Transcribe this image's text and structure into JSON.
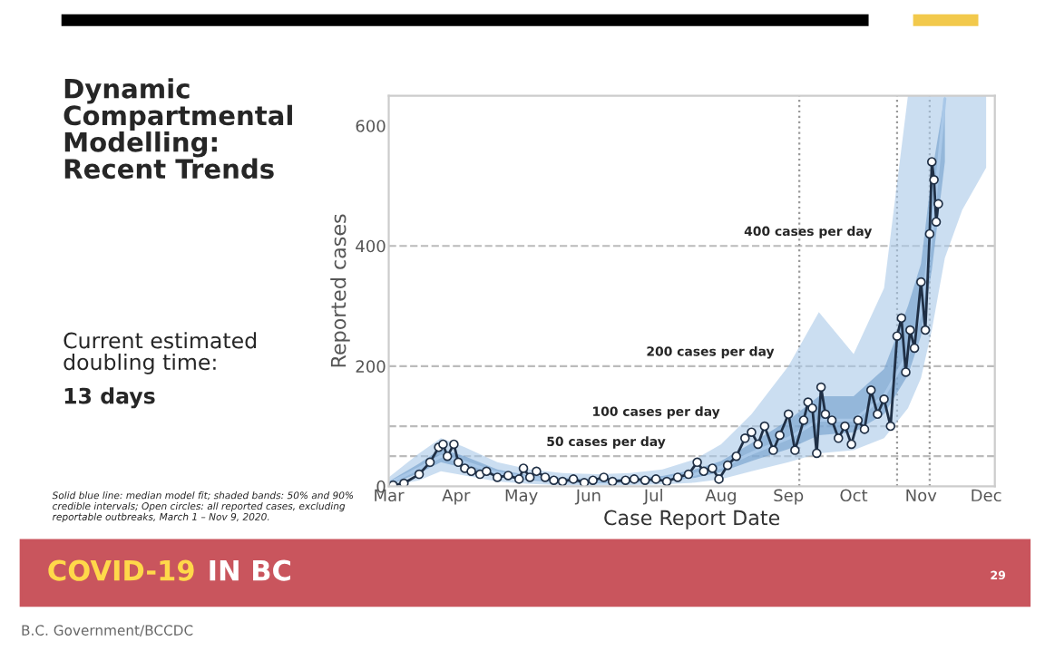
{
  "chart_data": {
    "type": "line",
    "title": "Dynamic\nCompartmental\nModelling:\nRecent Trends",
    "xlabel": "Case Report Date",
    "ylabel": "Reported cases",
    "xlim": [
      "2020-03-01",
      "2020-12-05"
    ],
    "xticks": [
      {
        "value": "2020-03-01",
        "label": "Mar"
      },
      {
        "value": "2020-04-01",
        "label": "Apr"
      },
      {
        "value": "2020-05-01",
        "label": "May"
      },
      {
        "value": "2020-06-01",
        "label": "Jun"
      },
      {
        "value": "2020-07-01",
        "label": "Jul"
      },
      {
        "value": "2020-08-01",
        "label": "Aug"
      },
      {
        "value": "2020-09-01",
        "label": "Sep"
      },
      {
        "value": "2020-10-01",
        "label": "Oct"
      },
      {
        "value": "2020-11-01",
        "label": "Nov"
      },
      {
        "value": "2020-12-01",
        "label": "Dec"
      }
    ],
    "ylim": [
      0,
      650
    ],
    "yticks": [
      0,
      200,
      400,
      600
    ],
    "grid": false,
    "legend": false,
    "series": [
      {
        "type": "line",
        "color": "#a9c8e8",
        "x": [
          "2020-03-01",
          "2020-03-15",
          "2020-03-25",
          "2020-04-05",
          "2020-04-20",
          "2020-05-05",
          "2020-05-20",
          "2020-06-05",
          "2020-06-20",
          "2020-07-05",
          "2020-07-20",
          "2020-08-01",
          "2020-08-15",
          "2020-09-01",
          "2020-09-15",
          "2020-10-01",
          "2020-10-15",
          "2020-10-26",
          "2020-11-01",
          "2020-11-06",
          "2020-11-12",
          "2020-11-20",
          "2020-12-01"
        ],
        "values": [
          5,
          30,
          50,
          40,
          22,
          14,
          10,
          8,
          9,
          12,
          20,
          32,
          55,
          80,
          110,
          110,
          150,
          220,
          290,
          420,
          645,
          null,
          null
        ],
        "lower": [
          0,
          10,
          25,
          18,
          8,
          4,
          2,
          1,
          2,
          3,
          6,
          12,
          25,
          40,
          55,
          60,
          80,
          130,
          180,
          260,
          380,
          460,
          530
        ],
        "upper": [
          15,
          55,
          80,
          65,
          40,
          28,
          22,
          20,
          22,
          28,
          45,
          70,
          120,
          200,
          290,
          220,
          330,
          650,
          650,
          650,
          650,
          650,
          650
        ]
      },
      {
        "type": "line",
        "color": "#6f9ccc",
        "x": [
          "2020-03-01",
          "2020-03-15",
          "2020-03-25",
          "2020-04-05",
          "2020-04-20",
          "2020-05-05",
          "2020-05-20",
          "2020-06-05",
          "2020-06-20",
          "2020-07-05",
          "2020-07-20",
          "2020-08-01",
          "2020-08-15",
          "2020-09-01",
          "2020-09-15",
          "2020-10-01",
          "2020-10-15",
          "2020-10-26",
          "2020-11-01",
          "2020-11-06",
          "2020-11-12"
        ],
        "values": [
          null,
          null,
          null,
          null,
          null,
          null,
          null,
          null,
          null,
          null,
          null,
          null,
          null,
          null,
          null,
          null,
          null,
          null,
          null,
          null,
          null
        ],
        "lower": [
          2,
          22,
          40,
          30,
          16,
          10,
          6,
          5,
          6,
          8,
          14,
          24,
          42,
          62,
          85,
          90,
          120,
          185,
          250,
          360,
          540
        ],
        "upper": [
          8,
          38,
          62,
          50,
          28,
          18,
          14,
          12,
          13,
          17,
          28,
          42,
          72,
          110,
          150,
          150,
          195,
          300,
          370,
          520,
          650
        ]
      },
      {
        "type": "line",
        "marker": "circle",
        "color": "#1f2f45",
        "x": [
          "2020-03-03",
          "2020-03-08",
          "2020-03-15",
          "2020-03-20",
          "2020-03-24",
          "2020-03-26",
          "2020-03-28",
          "2020-03-31",
          "2020-04-02",
          "2020-04-05",
          "2020-04-08",
          "2020-04-12",
          "2020-04-15",
          "2020-04-20",
          "2020-04-25",
          "2020-04-30",
          "2020-05-02",
          "2020-05-05",
          "2020-05-08",
          "2020-05-12",
          "2020-05-16",
          "2020-05-20",
          "2020-05-25",
          "2020-05-30",
          "2020-06-03",
          "2020-06-08",
          "2020-06-12",
          "2020-06-18",
          "2020-06-22",
          "2020-06-27",
          "2020-07-02",
          "2020-07-07",
          "2020-07-12",
          "2020-07-17",
          "2020-07-21",
          "2020-07-24",
          "2020-07-28",
          "2020-07-31",
          "2020-08-04",
          "2020-08-08",
          "2020-08-12",
          "2020-08-15",
          "2020-08-18",
          "2020-08-21",
          "2020-08-25",
          "2020-08-28",
          "2020-09-01",
          "2020-09-04",
          "2020-09-08",
          "2020-09-10",
          "2020-09-12",
          "2020-09-14",
          "2020-09-16",
          "2020-09-18",
          "2020-09-21",
          "2020-09-24",
          "2020-09-27",
          "2020-09-30",
          "2020-10-03",
          "2020-10-06",
          "2020-10-09",
          "2020-10-12",
          "2020-10-15",
          "2020-10-18",
          "2020-10-21",
          "2020-10-23",
          "2020-10-25",
          "2020-10-27",
          "2020-10-29",
          "2020-11-01",
          "2020-11-03",
          "2020-11-05",
          "2020-11-06",
          "2020-11-07",
          "2020-11-08",
          "2020-11-09"
        ],
        "values": [
          2,
          5,
          20,
          40,
          65,
          70,
          50,
          70,
          40,
          30,
          25,
          20,
          25,
          15,
          18,
          12,
          30,
          15,
          25,
          15,
          10,
          8,
          12,
          6,
          10,
          15,
          8,
          10,
          12,
          10,
          12,
          8,
          15,
          20,
          40,
          25,
          30,
          12,
          35,
          50,
          80,
          90,
          70,
          100,
          60,
          85,
          120,
          60,
          110,
          140,
          130,
          55,
          165,
          120,
          110,
          80,
          100,
          70,
          110,
          95,
          160,
          120,
          145,
          100,
          250,
          280,
          190,
          260,
          230,
          340,
          260,
          420,
          540,
          510,
          440,
          470
        ]
      }
    ],
    "ref_lines": [
      {
        "axis": "y",
        "value": 50,
        "color": "#bbbbbb",
        "line_style": "dashed"
      },
      {
        "axis": "y",
        "value": 100,
        "color": "#bbbbbb",
        "line_style": "dashed"
      },
      {
        "axis": "y",
        "value": 200,
        "color": "#bbbbbb",
        "line_style": "dashed"
      },
      {
        "axis": "y",
        "value": 400,
        "color": "#bbbbbb",
        "line_style": "dashed"
      },
      {
        "axis": "x",
        "value": "2020-09-06",
        "color": "#999999",
        "line_style": "dotted"
      },
      {
        "axis": "x",
        "value": "2020-10-21",
        "color": "#999999",
        "line_style": "dotted"
      },
      {
        "axis": "x",
        "value": "2020-11-05",
        "color": "#999999",
        "line_style": "dotted"
      }
    ],
    "annotations": [
      {
        "text": "50 cases per day",
        "x": "2020-06-09",
        "y": 50
      },
      {
        "text": "100 cases per day",
        "x": "2020-07-02",
        "y": 100
      },
      {
        "text": "200 cases per day",
        "x": "2020-07-27",
        "y": 200
      },
      {
        "text": "400 cases per day",
        "x": "2020-09-10",
        "y": 400
      },
      "Current estimated\ndoubling time:",
      "13 days",
      "Solid blue line: median model fit; shaded bands: 50% and 90% credible intervals; Open circles: all reported cases, excluding reportable outbreaks, March 1 – Nov 9, 2020.",
      "COVID-19",
      "IN BC",
      "29",
      "B.C. Government/BCCDC"
    ]
  }
}
